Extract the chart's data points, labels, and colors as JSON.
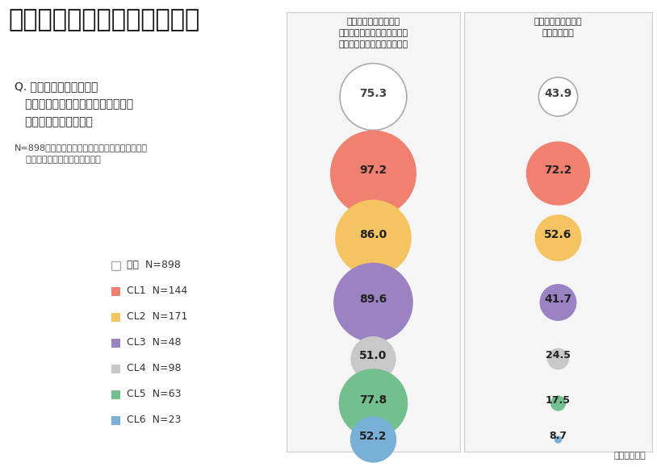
{
  "title": "自社の変化に対しての気持ち",
  "question_line1": "Q. 以下の項目について、",
  "question_line2": "   あなたのお気持ちに最も近いものを",
  "question_line3": "   １つお選びください。",
  "note_line1": "N=898：自社から変化について何らかの情報発信",
  "note_line2": "    や動きがあると回答した従業員",
  "col1_title_line1": "あなたの勤務先企業が",
  "col1_title_line2": "変化しようとしていることに",
  "col1_title_line3": "ついて、その必要性を感じる",
  "col2_title_line1": "自社の変化に対して",
  "col2_title_line2": "期待が持てる",
  "unit_text": "（単位：％）",
  "categories": [
    "全体",
    "CL1",
    "CL2",
    "CL3",
    "CL4",
    "CL5",
    "CL6"
  ],
  "ns": [
    898,
    144,
    171,
    48,
    98,
    63,
    23
  ],
  "colors": [
    "#ffffff",
    "#f08070",
    "#f5c462",
    "#9b82c3",
    "#c8c8c8",
    "#74bf8e",
    "#78b0d8"
  ],
  "edge_colors": [
    "#aaaaaa",
    "#f08070",
    "#f5c462",
    "#9b82c3",
    "#c8c8c8",
    "#74bf8e",
    "#78b0d8"
  ],
  "col1_values": [
    75.3,
    97.2,
    86.0,
    89.6,
    51.0,
    77.8,
    52.2
  ],
  "col2_values": [
    43.9,
    72.2,
    52.6,
    41.7,
    24.5,
    17.5,
    8.7
  ],
  "background_color": "#ffffff",
  "panel_bg": "#f5f5f5"
}
